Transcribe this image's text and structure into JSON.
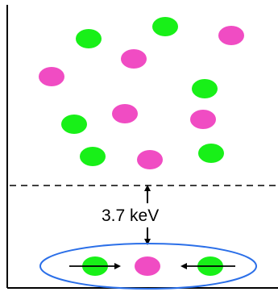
{
  "energy_label": "3.7 keV",
  "colors": {
    "green": "#18f018",
    "magenta": "#f04cc3",
    "ellipse": "#2b6fe8",
    "frame": "#000000",
    "dash": "#000000"
  },
  "particles": [
    {
      "kind": "green"
    },
    {
      "kind": "green"
    },
    {
      "kind": "magenta"
    },
    {
      "kind": "magenta"
    },
    {
      "kind": "magenta"
    },
    {
      "kind": "green"
    },
    {
      "kind": "magenta"
    },
    {
      "kind": "green"
    },
    {
      "kind": "magenta"
    },
    {
      "kind": "green"
    },
    {
      "kind": "magenta"
    },
    {
      "kind": "green"
    }
  ],
  "bound_state": {
    "particles": [
      {
        "kind": "green"
      },
      {
        "kind": "magenta"
      },
      {
        "kind": "green"
      }
    ]
  }
}
